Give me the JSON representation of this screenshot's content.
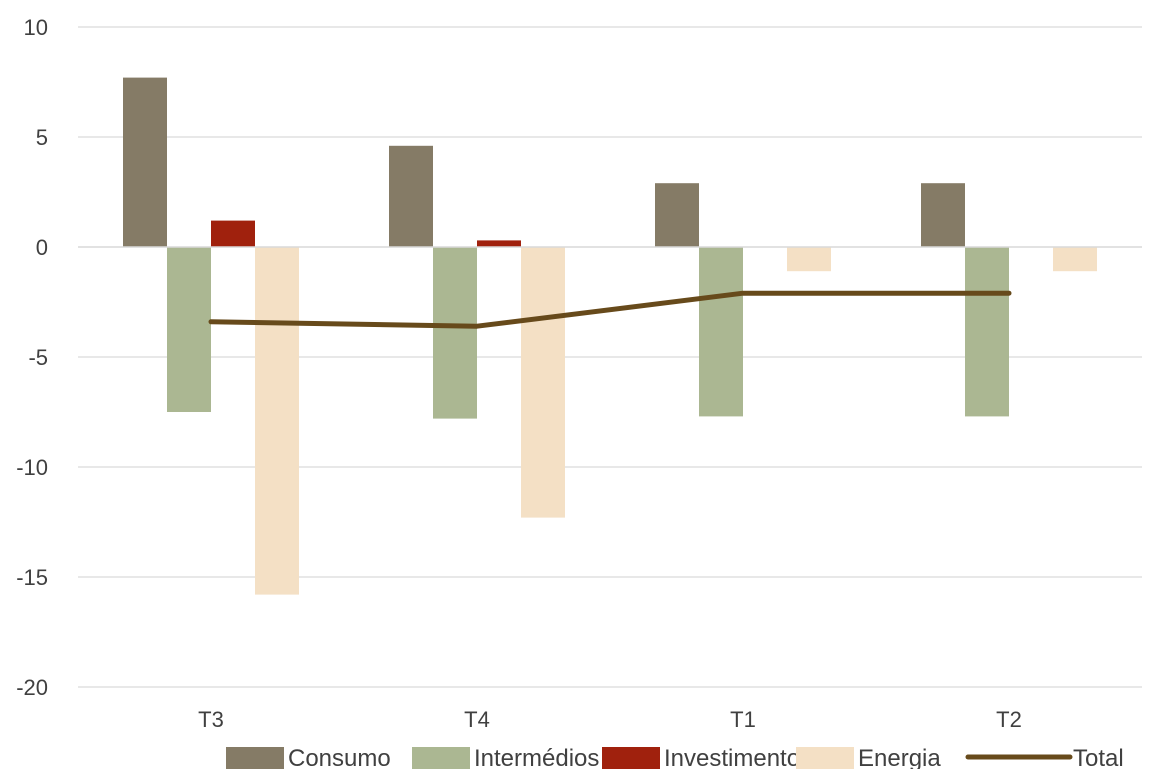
{
  "chart_data": {
    "type": "bar",
    "title": "",
    "xlabel": "",
    "ylabel": "",
    "categories": [
      "T3",
      "T4",
      "T1",
      "T2"
    ],
    "ylim": [
      -20,
      10
    ],
    "yticks": [
      10,
      5,
      0,
      -5,
      -10,
      -15,
      -20
    ],
    "grid": true,
    "legend_position": "bottom",
    "series": [
      {
        "name": "Consumo",
        "type": "bar",
        "color": "#857b66",
        "values": [
          7.7,
          4.6,
          2.9,
          2.9
        ]
      },
      {
        "name": "Intermédios",
        "type": "bar",
        "color": "#abb792",
        "values": [
          -7.5,
          -7.8,
          -7.7,
          -7.7
        ]
      },
      {
        "name": "Investimento",
        "type": "bar",
        "color": "#a0210d",
        "values": [
          1.2,
          0.3,
          0.0,
          0.0
        ]
      },
      {
        "name": "Energia",
        "type": "bar",
        "color": "#f4e0c5",
        "values": [
          -15.8,
          -12.3,
          -1.1,
          -1.1
        ]
      },
      {
        "name": "Total",
        "type": "line",
        "color": "#674a1b",
        "values": [
          -3.4,
          -3.6,
          -2.1,
          -2.1
        ]
      }
    ]
  }
}
